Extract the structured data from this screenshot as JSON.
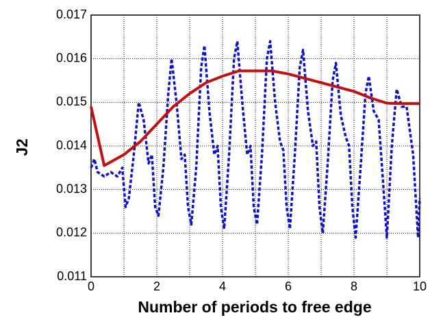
{
  "chart_data": {
    "type": "line",
    "x_label": "Number of periods to free edge",
    "y_label": "J2",
    "xlim": [
      0,
      10
    ],
    "ylim": [
      0.011,
      0.017
    ],
    "xticks": [
      0,
      2,
      4,
      6,
      8,
      10
    ],
    "xgrid_ticks": [
      1,
      3,
      5,
      7,
      9
    ],
    "yticks": [
      0.011,
      0.012,
      0.013,
      0.014,
      0.015,
      0.016,
      0.017
    ],
    "grid": true,
    "series": [
      {
        "color": "#1010c8",
        "dash": true,
        "x": [
          0,
          0.1,
          0.2,
          0.4,
          0.6,
          0.8,
          0.95,
          1.05,
          1.15,
          1.3,
          1.45,
          1.6,
          1.75,
          1.85,
          1.95,
          2.05,
          2.2,
          2.35,
          2.45,
          2.6,
          2.75,
          2.85,
          2.95,
          3.05,
          3.2,
          3.35,
          3.45,
          3.6,
          3.75,
          3.85,
          3.95,
          4.05,
          4.2,
          4.35,
          4.45,
          4.6,
          4.75,
          4.85,
          4.95,
          5.05,
          5.2,
          5.35,
          5.45,
          5.6,
          5.75,
          5.85,
          5.95,
          6.05,
          6.2,
          6.35,
          6.45,
          6.6,
          6.75,
          6.85,
          6.95,
          7.05,
          7.2,
          7.35,
          7.45,
          7.6,
          7.75,
          7.85,
          7.95,
          8.05,
          8.2,
          8.35,
          8.45,
          8.6,
          8.75,
          8.9,
          9.0,
          9.15,
          9.3,
          9.45,
          9.6,
          9.8,
          9.95,
          10
        ],
        "values": [
          0.0135,
          0.0137,
          0.0134,
          0.0133,
          0.0134,
          0.0133,
          0.0135,
          0.0126,
          0.0128,
          0.0138,
          0.015,
          0.0146,
          0.0136,
          0.0138,
          0.0126,
          0.0124,
          0.0135,
          0.0152,
          0.016,
          0.015,
          0.0137,
          0.0138,
          0.0126,
          0.0122,
          0.0135,
          0.0158,
          0.0163,
          0.0148,
          0.0138,
          0.014,
          0.0126,
          0.0121,
          0.0138,
          0.016,
          0.0164,
          0.015,
          0.0138,
          0.014,
          0.0126,
          0.0122,
          0.0138,
          0.016,
          0.0164,
          0.015,
          0.0141,
          0.0139,
          0.0126,
          0.0121,
          0.0138,
          0.0158,
          0.0162,
          0.0148,
          0.014,
          0.0141,
          0.0126,
          0.012,
          0.0136,
          0.0155,
          0.0159,
          0.0147,
          0.0142,
          0.014,
          0.0126,
          0.0119,
          0.0135,
          0.0152,
          0.0156,
          0.0148,
          0.0146,
          0.013,
          0.0119,
          0.014,
          0.0153,
          0.0149,
          0.0149,
          0.0138,
          0.0119,
          0.0128
        ]
      },
      {
        "color": "#c01010",
        "dash": false,
        "x": [
          0,
          0.4,
          1,
          1.5,
          2,
          2.5,
          3,
          3.5,
          4,
          4.5,
          5,
          5.5,
          6,
          6.5,
          7,
          7.5,
          8,
          8.5,
          9,
          9.5,
          10
        ],
        "values": [
          0.0149,
          0.01355,
          0.0138,
          0.0141,
          0.0145,
          0.0149,
          0.0152,
          0.01545,
          0.0156,
          0.01572,
          0.01572,
          0.01572,
          0.01565,
          0.01555,
          0.01545,
          0.01535,
          0.01525,
          0.0151,
          0.01498,
          0.01497,
          0.01497
        ]
      }
    ]
  }
}
